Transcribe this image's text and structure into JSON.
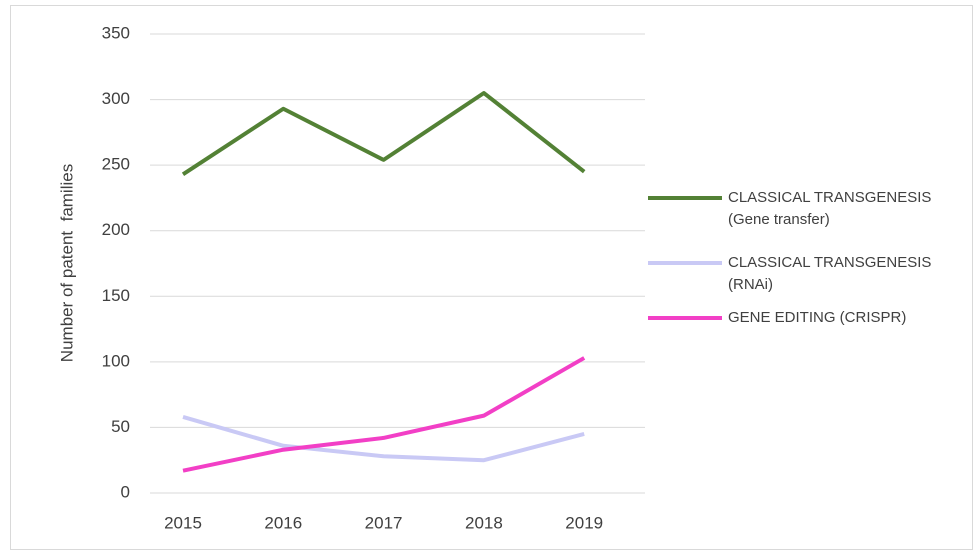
{
  "chart_data": {
    "type": "line",
    "y_label": "Number of patent  families",
    "categories": [
      "2015",
      "2016",
      "2017",
      "2018",
      "2019"
    ],
    "series": [
      {
        "name": "CLASSICAL TRANSGENESIS (Gene transfer)",
        "color": "#538135",
        "values": [
          243,
          293,
          254,
          305,
          245
        ]
      },
      {
        "name": "CLASSICAL TRANSGENESIS (RNAi)",
        "color": "#c9c9f5",
        "values": [
          58,
          36,
          28,
          25,
          45
        ]
      },
      {
        "name": "GENE EDITING (CRISPR)",
        "color": "#f23fc6",
        "values": [
          17,
          33,
          42,
          59,
          103
        ]
      }
    ],
    "ylim": [
      0,
      350
    ],
    "yticks": [
      0,
      50,
      100,
      150,
      200,
      250,
      300,
      350
    ],
    "grid": true,
    "legend": "right"
  }
}
